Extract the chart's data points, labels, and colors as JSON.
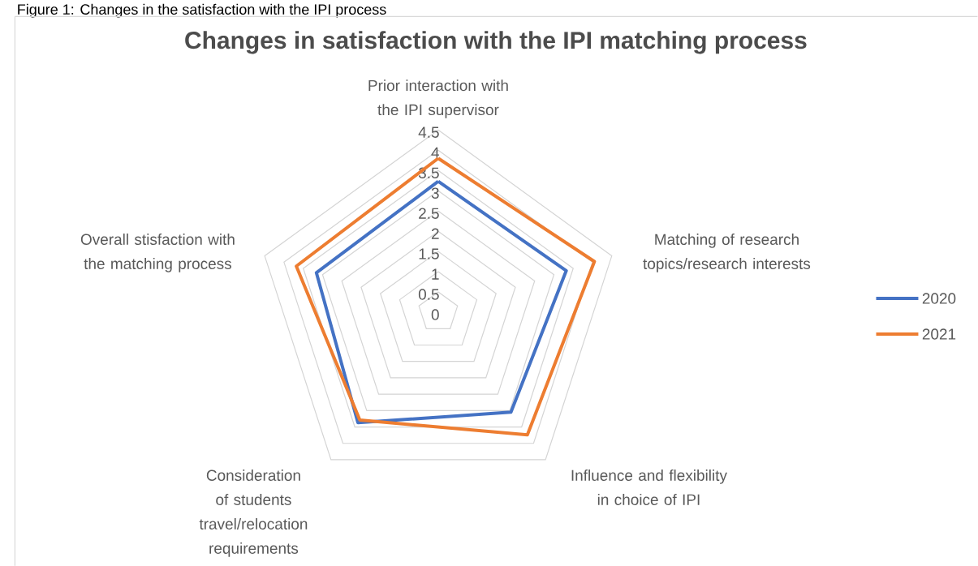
{
  "chart_data": {
    "type": "radar",
    "title": "Changes in satisfaction with the IPI matching process",
    "annotations": [
      "Figure 1: Changes in the satisfaction with the IPI process"
    ],
    "categories": [
      "Prior interaction with the IPI supervisor",
      "Matching of research topics/research interests",
      "Influence and flexibility in choice of IPI",
      "Consideration of students travel/relocation requirements",
      "Overall stisfaction with the matching process"
    ],
    "series": [
      {
        "name": "2020",
        "color": "#4472c4",
        "values": [
          3.23,
          3.32,
          3.05,
          3.37,
          3.16
        ]
      },
      {
        "name": "2021",
        "color": "#ed7d31",
        "values": [
          3.8,
          4.05,
          3.74,
          3.29,
          3.68
        ]
      }
    ],
    "ylim": [
      0,
      4.5
    ],
    "yticks": [
      0,
      0.5,
      1,
      1.5,
      2,
      2.5,
      3,
      3.5,
      4,
      4.5
    ],
    "grid": true,
    "legend": "right",
    "line_style": "solid"
  }
}
